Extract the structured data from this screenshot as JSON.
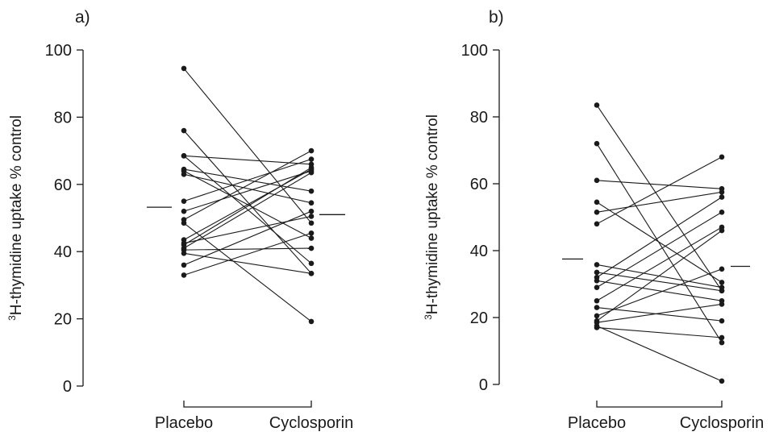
{
  "chart_data": [
    {
      "type": "line",
      "panel_label": "a)",
      "ylabel_sup": "3",
      "ylabel": "H-thymidine uptake  % control",
      "categories": [
        "Placebo",
        "Cyclosporin"
      ],
      "ylim": [
        0,
        100
      ],
      "yticks": [
        "0",
        "20",
        "40",
        "60",
        "80",
        "100"
      ],
      "means": {
        "Placebo": 53.2,
        "Cyclosporin": 51.0
      },
      "pairs": [
        [
          94.5,
          48.5
        ],
        [
          76.0,
          33.5
        ],
        [
          68.5,
          66.0
        ],
        [
          68.5,
          36.5
        ],
        [
          64.5,
          58.0
        ],
        [
          64.0,
          44.0
        ],
        [
          63.0,
          54.5
        ],
        [
          55.0,
          67.5
        ],
        [
          52.0,
          64.0
        ],
        [
          49.5,
          70.0
        ],
        [
          48.5,
          19.2
        ],
        [
          43.5,
          64.5
        ],
        [
          42.5,
          50.5
        ],
        [
          42.0,
          65.0
        ],
        [
          41.0,
          63.5
        ],
        [
          40.5,
          41.0
        ],
        [
          39.5,
          33.5
        ],
        [
          36.0,
          52.0
        ],
        [
          33.0,
          45.5
        ]
      ]
    },
    {
      "type": "line",
      "panel_label": "b)",
      "ylabel_sup": "3",
      "ylabel": "H-thymidine uptake  % control",
      "categories": [
        "Placebo",
        "Cyclosporin"
      ],
      "ylim": [
        0,
        100
      ],
      "yticks": [
        "0",
        "20",
        "40",
        "60",
        "80",
        "100"
      ],
      "means": {
        "Placebo": 37.5,
        "Cyclosporin": 35.3
      },
      "pairs": [
        [
          83.5,
          28.0
        ],
        [
          72.0,
          12.5
        ],
        [
          61.0,
          58.5
        ],
        [
          54.5,
          30.5
        ],
        [
          51.5,
          57.5
        ],
        [
          48.0,
          68.0
        ],
        [
          35.8,
          29.0
        ],
        [
          33.5,
          28.0
        ],
        [
          32.0,
          56.0
        ],
        [
          31.0,
          25.0
        ],
        [
          29.0,
          51.5
        ],
        [
          25.0,
          47.0
        ],
        [
          23.0,
          19.0
        ],
        [
          20.5,
          34.5
        ],
        [
          19.0,
          46.0
        ],
        [
          18.5,
          24.0
        ],
        [
          17.0,
          14.0
        ],
        [
          17.5,
          1.0
        ]
      ]
    }
  ]
}
